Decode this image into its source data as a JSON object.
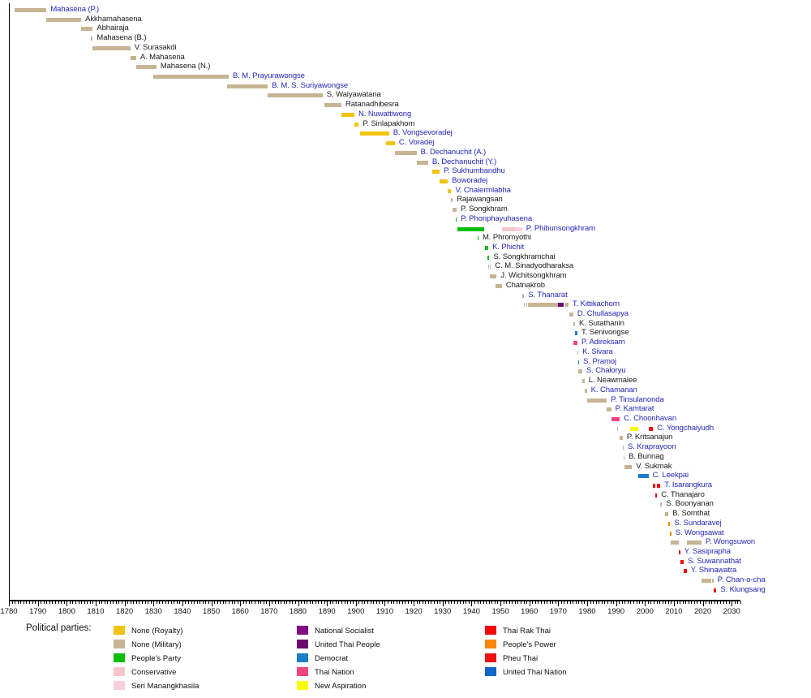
{
  "chart_data": {
    "type": "timeline",
    "title": "",
    "description": "Gantt-style timeline of Thai defence ministers' terms in office, colored by political party",
    "xlabel": "",
    "ylabel": "",
    "axis": {
      "start_year": 1780,
      "end_year": 2030,
      "major_tick_interval": 10,
      "minor_tick_interval": 1,
      "tick_labels": [
        1780,
        1790,
        1800,
        1810,
        1820,
        1830,
        1840,
        1850,
        1860,
        1870,
        1880,
        1890,
        1900,
        1910,
        1920,
        1930,
        1940,
        1950,
        1960,
        1970,
        1980,
        1990,
        2000,
        2010,
        2020,
        2030
      ],
      "grid": false
    },
    "legend_title": "Political parties:",
    "legend_position": "bottom",
    "name_colors": {
      "blue": "#2626BD",
      "black": "#1a1a1a"
    },
    "parties": [
      {
        "id": "roy",
        "label": "None (Royalty)",
        "color": "#F1C40F"
      },
      {
        "id": "mil",
        "label": "None (Military)",
        "color": "#C6B493"
      },
      {
        "id": "pp",
        "label": "People's Party",
        "color": "#09BE09"
      },
      {
        "id": "con",
        "label": "Conservative",
        "color": "#F5C6CB"
      },
      {
        "id": "seri",
        "label": "Seri Manangkhasila",
        "color": "#F8CFDA"
      },
      {
        "id": "ns",
        "label": "National Socialist",
        "color": "#840C84"
      },
      {
        "id": "utp",
        "label": "United Thai People",
        "color": "#6E096E"
      },
      {
        "id": "dem",
        "label": "Democrat",
        "color": "#1B7EC7"
      },
      {
        "id": "tn",
        "label": "Thai Nation",
        "color": "#F2447E"
      },
      {
        "id": "na",
        "label": "New Aspiration",
        "color": "#FAFA00"
      },
      {
        "id": "trt",
        "label": "Thai Rak Thai",
        "color": "#F40A0A"
      },
      {
        "id": "ppp",
        "label": "People's Power",
        "color": "#F78A0D"
      },
      {
        "id": "pt",
        "label": "Pheu Thai",
        "color": "#EE1111"
      },
      {
        "id": "utn",
        "label": "United Thai Nation",
        "color": "#1266C8"
      }
    ],
    "rows": [
      {
        "name": "Mahasena (P.)",
        "name_color": "blue",
        "segments": [
          {
            "start": 1782,
            "end": 1793,
            "party": "mil"
          }
        ]
      },
      {
        "name": "Akkhamahasena",
        "name_color": "black",
        "segments": [
          {
            "start": 1793,
            "end": 1805,
            "party": "mil"
          }
        ]
      },
      {
        "name": "Abhairaja",
        "name_color": "black",
        "segments": [
          {
            "start": 1805,
            "end": 1809,
            "party": "mil"
          }
        ]
      },
      {
        "name": "Mahasena (B.)",
        "name_color": "black",
        "segments": [
          {
            "start": 1808.4,
            "end": 1809,
            "party": "mil"
          }
        ]
      },
      {
        "name": "V. Surasakdi",
        "name_color": "black",
        "segments": [
          {
            "start": 1809,
            "end": 1822,
            "party": "mil"
          }
        ]
      },
      {
        "name": "A. Mahasena",
        "name_color": "black",
        "segments": [
          {
            "start": 1822,
            "end": 1824,
            "party": "mil"
          }
        ]
      },
      {
        "name": "Mahasena (N.)",
        "name_color": "black",
        "segments": [
          {
            "start": 1824,
            "end": 1831,
            "party": "mil"
          }
        ]
      },
      {
        "name": "B. M. Prayurawongse",
        "name_color": "blue",
        "segments": [
          {
            "start": 1830,
            "end": 1856,
            "party": "mil"
          }
        ]
      },
      {
        "name": "B. M. S. Suriyawongse",
        "name_color": "blue",
        "segments": [
          {
            "start": 1855.5,
            "end": 1869.5,
            "party": "mil"
          }
        ]
      },
      {
        "name": "S. Waiyawatana",
        "name_color": "black",
        "segments": [
          {
            "start": 1869.5,
            "end": 1888.5,
            "party": "mil"
          }
        ]
      },
      {
        "name": "Ratanadhibesra",
        "name_color": "black",
        "segments": [
          {
            "start": 1889,
            "end": 1895,
            "party": "mil"
          }
        ]
      },
      {
        "name": "N. Nuwattiwong",
        "name_color": "blue",
        "segments": [
          {
            "start": 1895,
            "end": 1899.5,
            "party": "roy"
          }
        ]
      },
      {
        "name": "P. Sinlapakhom",
        "name_color": "black",
        "segments": [
          {
            "start": 1899.5,
            "end": 1901,
            "party": "roy"
          }
        ]
      },
      {
        "name": "B. Vongsevoradej",
        "name_color": "blue",
        "segments": [
          {
            "start": 1901.5,
            "end": 1911.5,
            "party": "roy"
          }
        ]
      },
      {
        "name": "C. Voradej",
        "name_color": "blue",
        "segments": [
          {
            "start": 1910.5,
            "end": 1913.5,
            "party": "roy"
          }
        ]
      },
      {
        "name": "B. Dechanuchit (A.)",
        "name_color": "blue",
        "segments": [
          {
            "start": 1913.5,
            "end": 1921,
            "party": "mil"
          }
        ]
      },
      {
        "name": "B. Dechanuchit (Y.)",
        "name_color": "blue",
        "segments": [
          {
            "start": 1921,
            "end": 1925,
            "party": "mil"
          }
        ]
      },
      {
        "name": "P. Sukhumbandhu",
        "name_color": "blue",
        "segments": [
          {
            "start": 1926.5,
            "end": 1929,
            "party": "roy"
          }
        ]
      },
      {
        "name": "Boworadej",
        "name_color": "blue",
        "segments": [
          {
            "start": 1929,
            "end": 1931.8,
            "party": "roy"
          }
        ]
      },
      {
        "name": "V. Chalermlabha",
        "name_color": "blue",
        "segments": [
          {
            "start": 1931.8,
            "end": 1933,
            "party": "roy"
          }
        ]
      },
      {
        "name": "Rajawangsan",
        "name_color": "black",
        "segments": [
          {
            "start": 1933,
            "end": 1933.5,
            "party": "mil"
          }
        ]
      },
      {
        "name": "P. Songkhram",
        "name_color": "black",
        "segments": [
          {
            "start": 1933.5,
            "end": 1934.8,
            "party": "mil"
          }
        ]
      },
      {
        "name": "P. Phonphayuhasena",
        "name_color": "blue",
        "segments": [
          {
            "start": 1934.5,
            "end": 1934.9,
            "party": "pp"
          }
        ]
      },
      {
        "name": "P. Phibunsongkhram",
        "name_color": "blue",
        "segments": [
          {
            "start": 1935,
            "end": 1944.3,
            "party": "pp"
          },
          {
            "start": 1950.5,
            "end": 1955,
            "party": "con"
          },
          {
            "start": 1955,
            "end": 1957.5,
            "party": "seri"
          }
        ]
      },
      {
        "name": "M. Phromyothi",
        "name_color": "black",
        "segments": [
          {
            "start": 1942,
            "end": 1942.4,
            "party": "pp"
          }
        ]
      },
      {
        "name": "K. Phichit",
        "name_color": "blue",
        "segments": [
          {
            "start": 1944.7,
            "end": 1945.8,
            "party": "pp"
          }
        ]
      },
      {
        "name": "S. Songkhramchai",
        "name_color": "black",
        "segments": [
          {
            "start": 1945.5,
            "end": 1946.2,
            "party": "pp"
          }
        ]
      },
      {
        "name": "C. M. Sinadyodharaksa",
        "name_color": "black",
        "segments": [
          {
            "start": 1945.7,
            "end": 1946.0,
            "party": "mil"
          },
          {
            "start": 1946.4,
            "end": 1946.7,
            "party": "mil"
          }
        ]
      },
      {
        "name": "J. Wichitsongkhram",
        "name_color": "black",
        "segments": [
          {
            "start": 1946.2,
            "end": 1948.7,
            "party": "mil"
          }
        ]
      },
      {
        "name": "Chatnakrob",
        "name_color": "black",
        "segments": [
          {
            "start": 1948.2,
            "end": 1950.5,
            "party": "mil"
          }
        ]
      },
      {
        "name": "S. Thanarat",
        "name_color": "blue",
        "segments": [
          {
            "start": 1957.5,
            "end": 1958.2,
            "party": "mil"
          }
        ]
      },
      {
        "name": "T. Kittikachorn",
        "name_color": "blue",
        "segments": [
          {
            "start": 1958.1,
            "end": 1958.4,
            "party": "mil"
          },
          {
            "start": 1959,
            "end": 1959.3,
            "party": "mil"
          },
          {
            "start": 1959.4,
            "end": 1970,
            "party": "mil"
          },
          {
            "start": 1970,
            "end": 1971.9,
            "party": "utp"
          },
          {
            "start": 1972.3,
            "end": 1973.5,
            "party": "mil"
          }
        ]
      },
      {
        "name": "D. Chullasapya",
        "name_color": "blue",
        "segments": [
          {
            "start": 1973.8,
            "end": 1975.2,
            "party": "mil"
          }
        ]
      },
      {
        "name": "K. Sutathanin",
        "name_color": "black",
        "segments": [
          {
            "start": 1975.2,
            "end": 1975.8,
            "party": "mil"
          }
        ]
      },
      {
        "name": "T. Senivongse",
        "name_color": "black",
        "segments": [
          {
            "start": 1975.9,
            "end": 1976.1,
            "party": "dem"
          },
          {
            "start": 1976.3,
            "end": 1976.5,
            "party": "dem"
          }
        ]
      },
      {
        "name": "P. Adireksarn",
        "name_color": "blue",
        "segments": [
          {
            "start": 1975.3,
            "end": 1976.6,
            "party": "tn"
          }
        ]
      },
      {
        "name": "K. Sivara",
        "name_color": "blue",
        "segments": [
          {
            "start": 1976.6,
            "end": 1976.9,
            "party": "mil"
          }
        ]
      },
      {
        "name": "S. Pramoj",
        "name_color": "blue",
        "segments": [
          {
            "start": 1976.9,
            "end": 1977.2,
            "party": "dem"
          }
        ]
      },
      {
        "name": "S. Chaloryu",
        "name_color": "blue",
        "segments": [
          {
            "start": 1976.9,
            "end": 1978.3,
            "party": "mil"
          }
        ]
      },
      {
        "name": "L. Neawmalee",
        "name_color": "black",
        "segments": [
          {
            "start": 1978.3,
            "end": 1979.1,
            "party": "mil"
          }
        ]
      },
      {
        "name": "K. Chamanan",
        "name_color": "blue",
        "segments": [
          {
            "start": 1979.1,
            "end": 1979.9,
            "party": "mil"
          }
        ]
      },
      {
        "name": "P. Tinsulanonda",
        "name_color": "blue",
        "segments": [
          {
            "start": 1979.9,
            "end": 1986.8,
            "party": "mil"
          }
        ]
      },
      {
        "name": "P. Kamtarat",
        "name_color": "blue",
        "segments": [
          {
            "start": 1986.8,
            "end": 1988.3,
            "party": "mil"
          }
        ]
      },
      {
        "name": "C. Choonhavan",
        "name_color": "blue",
        "segments": [
          {
            "start": 1988.3,
            "end": 1991.3,
            "party": "tn"
          }
        ]
      },
      {
        "name": "C. Yongchaiyudh",
        "name_color": "blue",
        "segments": [
          {
            "start": 1990.3,
            "end": 1990.7,
            "party": "mil"
          },
          {
            "start": 1994.8,
            "end": 1997.7,
            "party": "na"
          },
          {
            "start": 2001.2,
            "end": 2002.8,
            "party": "trt"
          }
        ]
      },
      {
        "name": "P. Kritsanajun",
        "name_color": "black",
        "segments": [
          {
            "start": 1991.3,
            "end": 1992.3,
            "party": "mil"
          }
        ]
      },
      {
        "name": "S. Kraprayoon",
        "name_color": "blue",
        "segments": [
          {
            "start": 1992.3,
            "end": 1992.6,
            "party": "mil"
          }
        ]
      },
      {
        "name": "B. Bunnag",
        "name_color": "black",
        "segments": [
          {
            "start": 1992.6,
            "end": 1992.9,
            "party": "mil"
          }
        ]
      },
      {
        "name": "V. Sukmak",
        "name_color": "black",
        "segments": [
          {
            "start": 1992.9,
            "end": 1995.5,
            "party": "mil"
          }
        ]
      },
      {
        "name": "C. Leekpai",
        "name_color": "blue",
        "segments": [
          {
            "start": 1997.8,
            "end": 2001.2,
            "party": "dem"
          }
        ]
      },
      {
        "name": "T. Isarangkura",
        "name_color": "blue",
        "segments": [
          {
            "start": 2002.8,
            "end": 2003.6,
            "party": "trt"
          },
          {
            "start": 2004.2,
            "end": 2005.3,
            "party": "trt"
          }
        ]
      },
      {
        "name": "C. Thanajaro",
        "name_color": "black",
        "segments": [
          {
            "start": 2003.6,
            "end": 2004.2,
            "party": "trt"
          }
        ]
      },
      {
        "name": "S. Boonyanan",
        "name_color": "black",
        "segments": [
          {
            "start": 2005.3,
            "end": 2005.9,
            "party": "mil"
          }
        ]
      },
      {
        "name": "B. Somthat",
        "name_color": "black",
        "segments": [
          {
            "start": 2006.8,
            "end": 2008.1,
            "party": "mil"
          }
        ]
      },
      {
        "name": "S. Sundaravej",
        "name_color": "blue",
        "segments": [
          {
            "start": 2008.1,
            "end": 2008.7,
            "party": "ppp"
          }
        ]
      },
      {
        "name": "S. Wongsawat",
        "name_color": "blue",
        "segments": [
          {
            "start": 2008.75,
            "end": 2009.0,
            "party": "ppp"
          }
        ]
      },
      {
        "name": "P. Wongsuwon",
        "name_color": "blue",
        "segments": [
          {
            "start": 2009.0,
            "end": 2011.6,
            "party": "mil"
          },
          {
            "start": 2014.6,
            "end": 2019.5,
            "party": "mil"
          }
        ]
      },
      {
        "name": "Y. Sasiprapha",
        "name_color": "blue",
        "segments": [
          {
            "start": 2011.6,
            "end": 2012.2,
            "party": "pt"
          }
        ]
      },
      {
        "name": "S. Suwannathat",
        "name_color": "blue",
        "segments": [
          {
            "start": 2012.2,
            "end": 2013.4,
            "party": "pt"
          }
        ]
      },
      {
        "name": "Y. Shinawatra",
        "name_color": "blue",
        "segments": [
          {
            "start": 2013.5,
            "end": 2014.4,
            "party": "pt"
          }
        ]
      },
      {
        "name": "P. Chan-o-cha",
        "name_color": "blue",
        "segments": [
          {
            "start": 2019.5,
            "end": 2023.0,
            "party": "mil"
          },
          {
            "start": 2023.2,
            "end": 2023.7,
            "party": "mil"
          }
        ]
      },
      {
        "name": "S. Klungsang",
        "name_color": "blue",
        "segments": [
          {
            "start": 2023.7,
            "end": 2024.7,
            "party": "pt"
          }
        ]
      }
    ]
  }
}
